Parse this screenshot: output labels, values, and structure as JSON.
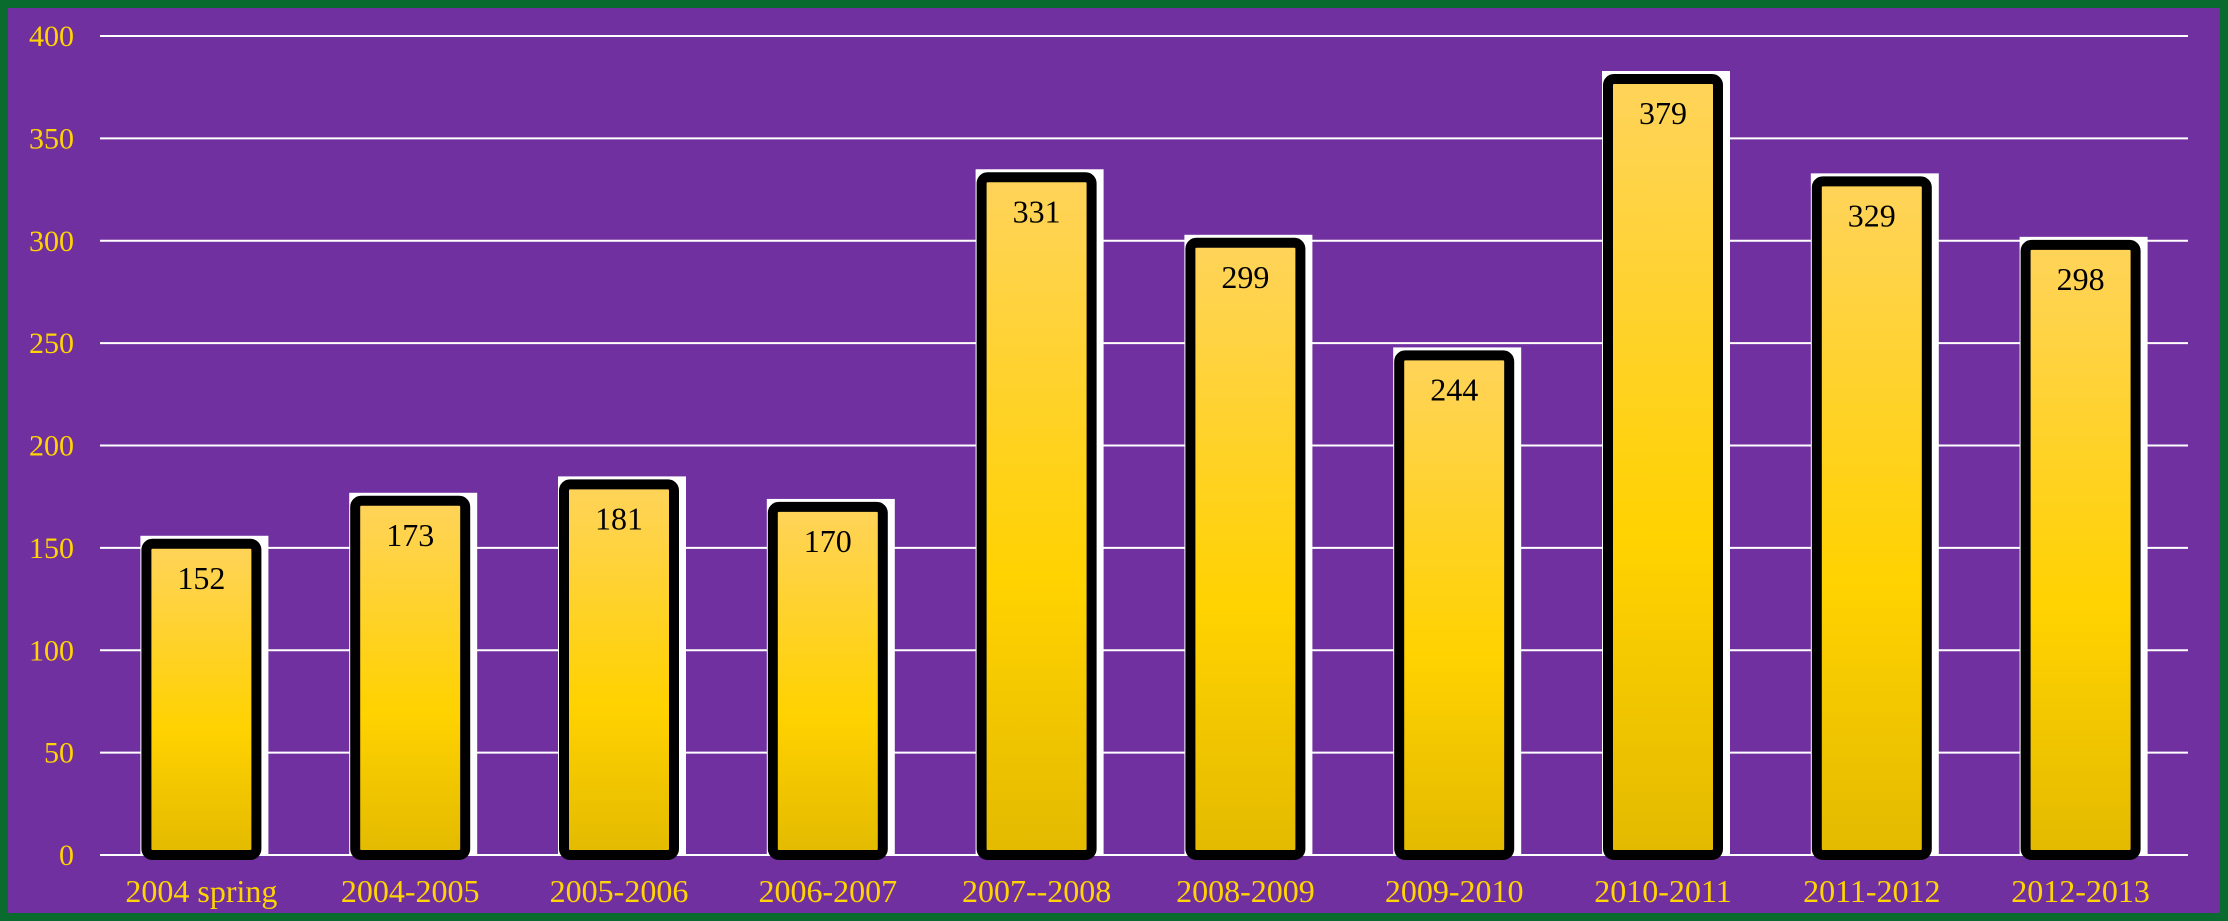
{
  "chart_data": {
    "type": "bar",
    "title": "",
    "xlabel": "",
    "ylabel": "",
    "categories": [
      "2004 spring",
      "2004-2005",
      "2005-2006",
      "2006-2007",
      "2007--2008",
      "2008-2009",
      "2009-2010",
      "2010-2011",
      "2011-2012",
      "2012-2013"
    ],
    "values": [
      152,
      173,
      181,
      170,
      331,
      299,
      244,
      379,
      329,
      298
    ],
    "ylim": [
      0,
      400
    ],
    "yticks": [
      "0",
      "50",
      "100",
      "150",
      "200",
      "250",
      "300",
      "350",
      "400"
    ],
    "grid": true,
    "legend": "none",
    "data_labels": true
  },
  "colors": {
    "background": "#7030a0",
    "frame": "#0a6b2e",
    "bar_top": "#ffd35a",
    "bar_mid": "#ffd200",
    "bar_bottom": "#e3ba00",
    "bar_outline": "#000000",
    "tick_text": "#ffd400",
    "gridline": "#ffffff",
    "data_label_text": "#000000"
  }
}
